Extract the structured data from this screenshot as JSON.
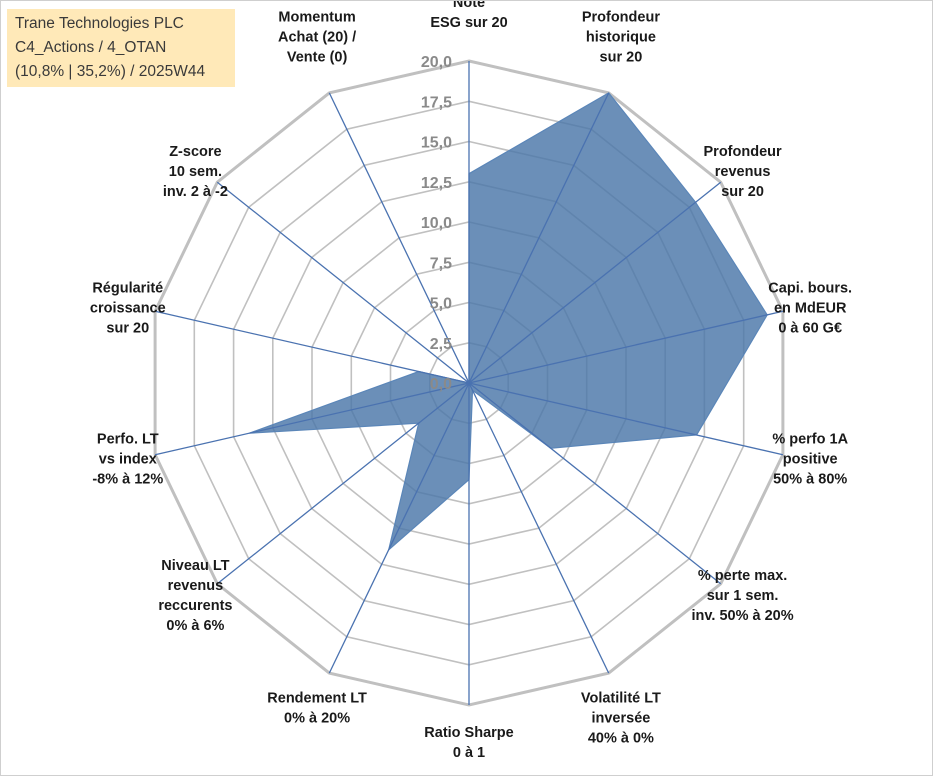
{
  "info": {
    "company": "Trane Technologies PLC",
    "portfolio": "C4_Actions / 4_OTAN",
    "stats": "(10,8% | 35,2%) / 2025W44"
  },
  "chart_data": {
    "type": "radar",
    "title": "",
    "rmin": 0,
    "rmax": 20,
    "ticks": [
      "0,0",
      "2,5",
      "5,0",
      "7,5",
      "10,0",
      "12,5",
      "15,0",
      "17,5",
      "20,0"
    ],
    "tick_values": [
      0,
      2.5,
      5,
      7.5,
      10,
      12.5,
      15,
      17.5,
      20
    ],
    "series_color": "#4a76a8",
    "grid_color": "#c0c0c0",
    "axis_color": "#4a72b0",
    "categories": [
      {
        "lines": [
          "Note",
          "ESG sur 20"
        ]
      },
      {
        "lines": [
          "Profondeur",
          "historique",
          "sur 20"
        ]
      },
      {
        "lines": [
          "Profondeur",
          "revenus",
          "sur 20"
        ]
      },
      {
        "lines": [
          "Capi. bours.",
          "en MdEUR",
          "0 à 60 G€"
        ]
      },
      {
        "lines": [
          "% perfo 1A",
          "positive",
          "50% à 80%"
        ]
      },
      {
        "lines": [
          "% perte max.",
          "sur 1 sem.",
          "inv. 50% à 20%"
        ]
      },
      {
        "lines": [
          "Volatilité LT",
          "inversée",
          "40% à 0%"
        ]
      },
      {
        "lines": [
          "Ratio Sharpe",
          "0 à 1"
        ]
      },
      {
        "lines": [
          "Rendement LT",
          "0% à 20%"
        ]
      },
      {
        "lines": [
          "Niveau LT",
          "revenus",
          "reccurents",
          "0% à 6%"
        ]
      },
      {
        "lines": [
          "Perfo. LT",
          "vs index",
          "-8% à 12%"
        ]
      },
      {
        "lines": [
          "Régularité",
          "croissance",
          "sur 20"
        ]
      },
      {
        "lines": [
          "Z-score",
          "10 sem.",
          "inv. 2 à -2"
        ]
      },
      {
        "lines": [
          "Momentum",
          "Achat (20) /",
          "Vente (0)"
        ]
      }
    ],
    "values": [
      13.0,
      20.0,
      18.0,
      19.0,
      14.5,
      6.5,
      0.5,
      6.0,
      11.5,
      4.0,
      14.0,
      3.2,
      0.0,
      0.0
    ]
  }
}
